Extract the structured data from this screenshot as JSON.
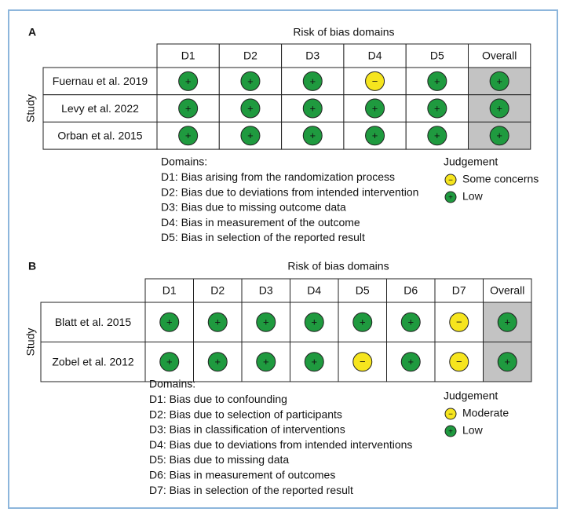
{
  "panels": [
    {
      "label": "A",
      "title": "Risk of bias domains",
      "row_header": "Study",
      "columns": [
        "D1",
        "D2",
        "D3",
        "D4",
        "D5",
        "Overall"
      ],
      "rows": [
        {
          "study": "Fuernau et al. 2019",
          "cells": [
            "+",
            "+",
            "+",
            "−",
            "+",
            "+"
          ]
        },
        {
          "study": "Levy et al. 2022",
          "cells": [
            "+",
            "+",
            "+",
            "+",
            "+",
            "+"
          ]
        },
        {
          "study": "Orban et al. 2015",
          "cells": [
            "+",
            "+",
            "+",
            "+",
            "+",
            "+"
          ]
        }
      ],
      "domains_title": "Domains:",
      "domains": [
        "D1: Bias arising from the randomization process",
        "D2: Bias due to deviations from intended intervention",
        "D3: Bias due to missing outcome data",
        "D4: Bias in measurement of the outcome",
        "D5: Bias in selection of the reported result"
      ],
      "judgement_title": "Judgement",
      "judgements": [
        {
          "symbol": "−",
          "label": "Some concerns",
          "color": "#f6e51e"
        },
        {
          "symbol": "+",
          "label": "Low",
          "color": "#1f9a3f"
        }
      ]
    },
    {
      "label": "B",
      "title": "Risk of bias domains",
      "row_header": "Study",
      "columns": [
        "D1",
        "D2",
        "D3",
        "D4",
        "D5",
        "D6",
        "D7",
        "Overall"
      ],
      "rows": [
        {
          "study": "Blatt et al. 2015",
          "cells": [
            "+",
            "+",
            "+",
            "+",
            "+",
            "+",
            "−",
            "+"
          ]
        },
        {
          "study": "Zobel et al. 2012",
          "cells": [
            "+",
            "+",
            "+",
            "+",
            "−",
            "+",
            "−",
            "+"
          ]
        }
      ],
      "domains_title": "Domains:",
      "domains": [
        "D1: Bias due to confounding",
        "D2: Bias due to selection of participants",
        "D3: Bias in classification of interventions",
        "D4: Bias due to deviations from intended interventions",
        "D5: Bias due to missing data",
        "D6: Bias in measurement of outcomes",
        "D7: Bias in selection of the reported result"
      ],
      "judgement_title": "Judgement",
      "judgements": [
        {
          "symbol": "−",
          "label": "Moderate",
          "color": "#f6e51e"
        },
        {
          "symbol": "+",
          "label": "Low",
          "color": "#1f9a3f"
        }
      ]
    }
  ]
}
